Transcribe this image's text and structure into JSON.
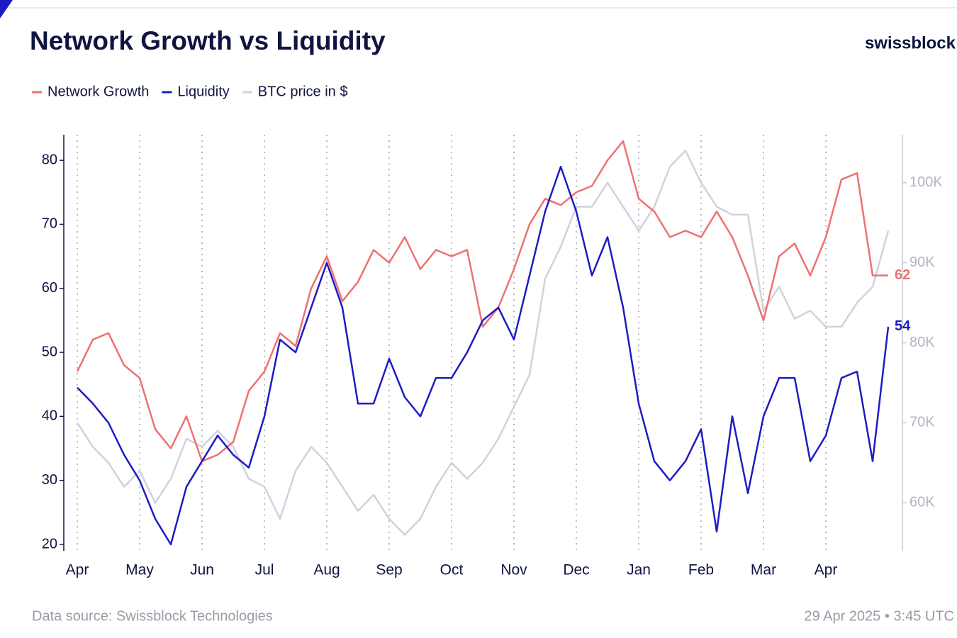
{
  "chart_data": {
    "type": "line",
    "title": "Network Growth vs Liquidity",
    "brand": "swissblock",
    "source": "Data source: Swissblock Technologies",
    "timestamp": "29 Apr 2025 • 3:45 UTC",
    "categories": [
      "Apr",
      null,
      null,
      null,
      "May",
      null,
      null,
      null,
      "Jun",
      null,
      null,
      null,
      "Jul",
      null,
      null,
      null,
      "Aug",
      null,
      null,
      null,
      "Sep",
      null,
      null,
      null,
      "Oct",
      null,
      null,
      null,
      "Nov",
      null,
      null,
      null,
      "Dec",
      null,
      null,
      null,
      "Jan",
      null,
      null,
      null,
      "Feb",
      null,
      null,
      null,
      "Mar",
      null,
      null,
      null,
      "Apr",
      null,
      null,
      null,
      null
    ],
    "series": [
      {
        "name": "Network Growth",
        "color": "#f07070",
        "last_value_label": "62",
        "values": [
          47,
          52,
          53,
          48,
          46,
          38,
          35,
          40,
          33,
          34,
          36,
          44,
          47,
          53,
          51,
          60,
          65,
          58,
          61,
          66,
          64,
          68,
          63,
          66,
          65,
          66,
          54,
          57,
          63,
          70,
          74,
          73,
          75,
          76,
          80,
          83,
          74,
          72,
          68,
          69,
          68,
          72,
          68,
          62,
          55,
          65,
          67,
          62,
          68,
          77,
          78,
          62,
          62
        ]
      },
      {
        "name": "Liquidity",
        "color": "#1c1cc4",
        "last_value_label": "54",
        "values": [
          44.5,
          42,
          39,
          34,
          30,
          24,
          20,
          29,
          33,
          37,
          34,
          32,
          40,
          52,
          50,
          57,
          64,
          57,
          42,
          42,
          49,
          43,
          40,
          46,
          46,
          50,
          55,
          57,
          52,
          62,
          72,
          79,
          72,
          62,
          68,
          57,
          42,
          33,
          30,
          33,
          38,
          22,
          40,
          28,
          40,
          46,
          46,
          33,
          37,
          46,
          47,
          33,
          54
        ]
      },
      {
        "name": "BTC price in $",
        "color": "#d0d2de",
        "axis": "y2",
        "values": [
          70000,
          67000,
          65000,
          62000,
          64000,
          60000,
          63000,
          68000,
          67000,
          69000,
          67000,
          63000,
          62000,
          58000,
          64000,
          67000,
          65000,
          62000,
          59000,
          61000,
          58000,
          56000,
          58000,
          62000,
          65000,
          63000,
          65000,
          68000,
          72000,
          76000,
          88000,
          92000,
          97000,
          97000,
          100000,
          97000,
          94000,
          97000,
          102000,
          104000,
          100000,
          97000,
          96000,
          96000,
          84000,
          87000,
          83000,
          84000,
          82000,
          82000,
          85000,
          87000,
          94000
        ]
      }
    ],
    "ylim": [
      19,
      84
    ],
    "yticks": [
      20,
      30,
      40,
      50,
      60,
      70,
      80
    ],
    "y2lim": [
      54000,
      106000
    ],
    "y2ticks": [
      {
        "value": 60000,
        "label": "60K"
      },
      {
        "value": 70000,
        "label": "70K"
      },
      {
        "value": 80000,
        "label": "80K"
      },
      {
        "value": 90000,
        "label": "90K"
      },
      {
        "value": 100000,
        "label": "100K"
      }
    ],
    "grid": true
  }
}
